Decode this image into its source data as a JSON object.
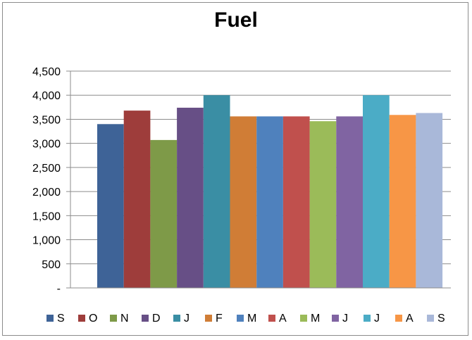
{
  "chart_data": {
    "type": "bar",
    "title": "Fuel",
    "xlabel": "",
    "ylabel": "",
    "ylim": [
      0,
      4500
    ],
    "y_ticks": [
      {
        "value": 4500,
        "label": "4,500"
      },
      {
        "value": 4000,
        "label": "4,000"
      },
      {
        "value": 3500,
        "label": "3,500"
      },
      {
        "value": 3000,
        "label": "3,000"
      },
      {
        "value": 2500,
        "label": "2,500"
      },
      {
        "value": 2000,
        "label": "2,000"
      },
      {
        "value": 1500,
        "label": "1,500"
      },
      {
        "value": 1000,
        "label": "1,000"
      },
      {
        "value": 500,
        "label": "500"
      },
      {
        "value": 0,
        "label": "-"
      }
    ],
    "grid": true,
    "legend_position": "bottom",
    "series": [
      {
        "name": "S",
        "value": 3400,
        "color": "#3E6397"
      },
      {
        "name": "O",
        "value": 3680,
        "color": "#9E3D3B"
      },
      {
        "name": "N",
        "value": 3070,
        "color": "#7E9A48"
      },
      {
        "name": "D",
        "value": 3740,
        "color": "#674F86"
      },
      {
        "name": "J",
        "value": 4000,
        "color": "#3A8EA4"
      },
      {
        "name": "F",
        "value": 3560,
        "color": "#D07D36"
      },
      {
        "name": "M",
        "value": 3560,
        "color": "#4F81BD"
      },
      {
        "name": "A",
        "value": 3560,
        "color": "#C0504D"
      },
      {
        "name": "M",
        "value": 3460,
        "color": "#9BBB59"
      },
      {
        "name": "J",
        "value": 3560,
        "color": "#8064A2"
      },
      {
        "name": "J",
        "value": 4000,
        "color": "#4BACC6"
      },
      {
        "name": "A",
        "value": 3590,
        "color": "#F79646"
      },
      {
        "name": "S",
        "value": 3630,
        "color": "#A9B8D9"
      }
    ]
  }
}
